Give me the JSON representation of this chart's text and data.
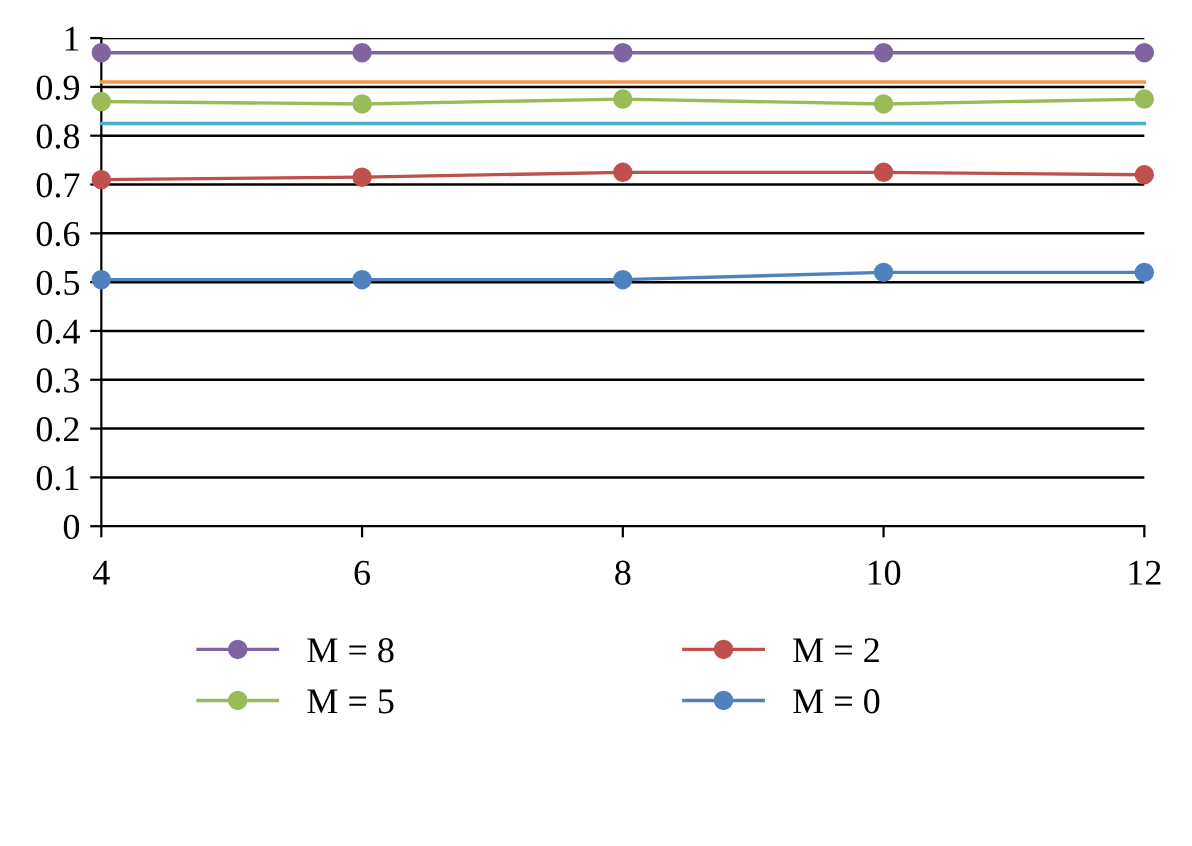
{
  "chart_data": {
    "type": "line",
    "x": [
      4,
      6,
      8,
      10,
      12
    ],
    "xlim": [
      4,
      12
    ],
    "xticks": [
      4,
      6,
      8,
      10,
      12
    ],
    "ylim": [
      0,
      1
    ],
    "yticks": [
      0,
      0.1,
      0.2,
      0.3,
      0.4,
      0.5,
      0.6,
      0.7,
      0.8,
      0.9,
      1
    ],
    "grid": "y",
    "legend": "bottom",
    "marker": "circle",
    "line_style": "solid",
    "series": [
      {
        "name": "M = 8",
        "color": "#8064a2",
        "values": [
          0.97,
          0.97,
          0.97,
          0.97,
          0.97
        ]
      },
      {
        "name": "M = 5",
        "color": "#9bbb59",
        "values": [
          0.87,
          0.865,
          0.875,
          0.865,
          0.875
        ]
      },
      {
        "name": "M = 2",
        "color": "#c0504d",
        "values": [
          0.71,
          0.715,
          0.725,
          0.725,
          0.72
        ]
      },
      {
        "name": "M = 0",
        "color": "#4f81bd",
        "values": [
          0.505,
          0.505,
          0.505,
          0.52,
          0.52
        ]
      },
      {
        "color": "#f79646",
        "marker": "none",
        "values": [
          0.91,
          0.91,
          0.91,
          0.91,
          0.91
        ]
      },
      {
        "color": "#4bacc6",
        "marker": "none",
        "values": [
          0.825,
          0.825,
          0.825,
          0.825,
          0.825
        ]
      }
    ]
  }
}
